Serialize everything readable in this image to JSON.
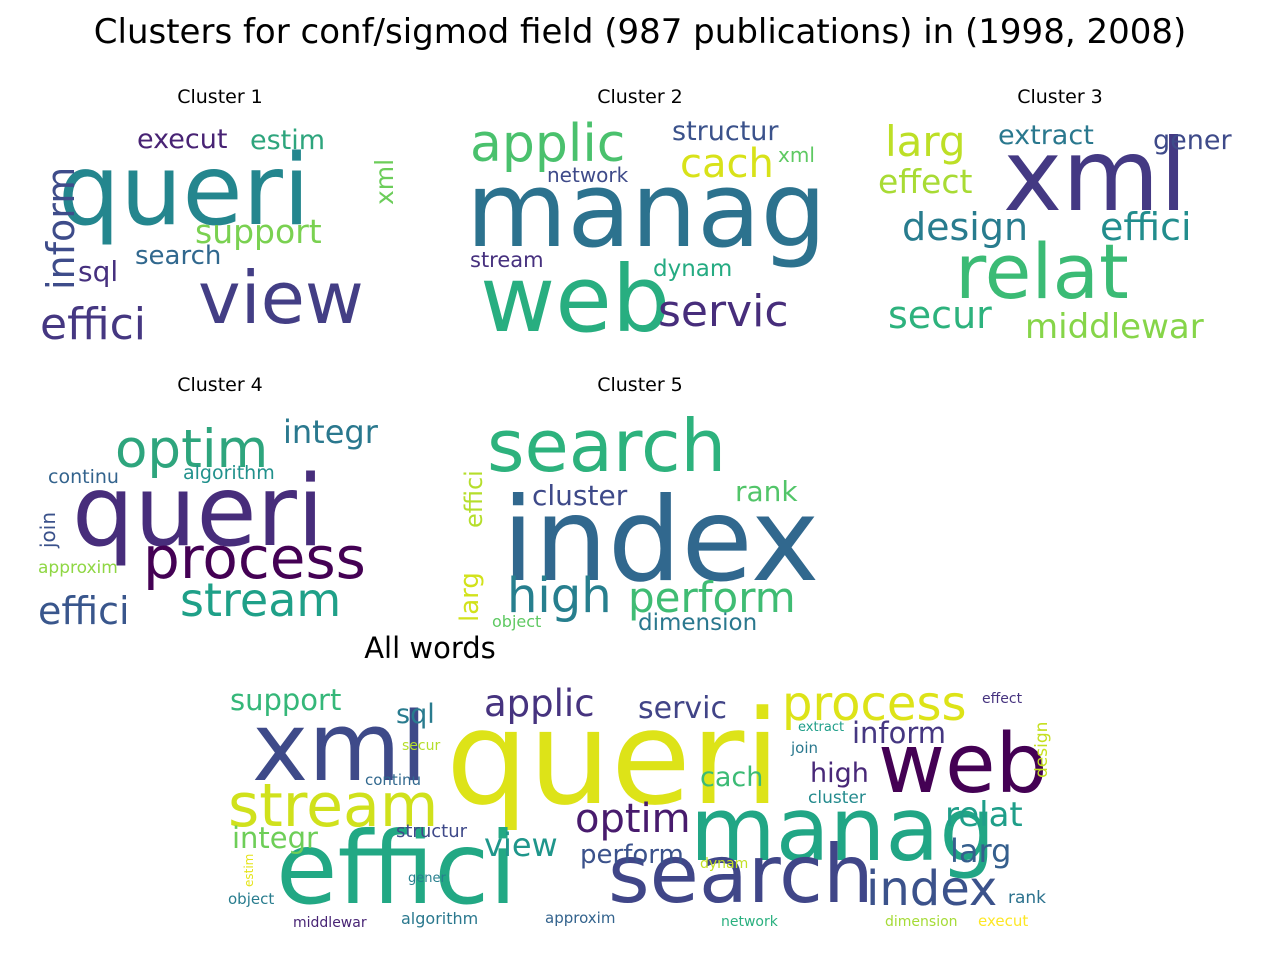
{
  "title": "Clusters for conf/sigmod field (987 publications) in (1998, 2008)",
  "chart_data": [
    {
      "type": "wordcloud",
      "title": "Cluster 1",
      "words": [
        {
          "text": "queri",
          "color": "#24868e"
        },
        {
          "text": "view",
          "color": "#433e85"
        },
        {
          "text": "effici",
          "color": "#453781"
        },
        {
          "text": "inform",
          "color": "#3e4c8a"
        },
        {
          "text": "execut",
          "color": "#482374"
        },
        {
          "text": "estim",
          "color": "#2ea57d"
        },
        {
          "text": "support",
          "color": "#7ad151"
        },
        {
          "text": "search",
          "color": "#31688e"
        },
        {
          "text": "sql",
          "color": "#46307e"
        },
        {
          "text": "xml",
          "color": "#6ccd5a"
        }
      ]
    },
    {
      "type": "wordcloud",
      "title": "Cluster 2",
      "words": [
        {
          "text": "manag",
          "color": "#2c728e"
        },
        {
          "text": "web",
          "color": "#28ae80"
        },
        {
          "text": "applic",
          "color": "#4ac16d"
        },
        {
          "text": "servic",
          "color": "#472d7b"
        },
        {
          "text": "structur",
          "color": "#3b528b"
        },
        {
          "text": "cach",
          "color": "#d8e219"
        },
        {
          "text": "network",
          "color": "#3e4a89"
        },
        {
          "text": "xml",
          "color": "#5ec962"
        },
        {
          "text": "stream",
          "color": "#46307e"
        },
        {
          "text": "dynam",
          "color": "#25ab82"
        }
      ]
    },
    {
      "type": "wordcloud",
      "title": "Cluster 3",
      "words": [
        {
          "text": "xml",
          "color": "#443983"
        },
        {
          "text": "relat",
          "color": "#3bbb75"
        },
        {
          "text": "larg",
          "color": "#bddf26"
        },
        {
          "text": "extract",
          "color": "#2a788e"
        },
        {
          "text": "gener",
          "color": "#3e4a89"
        },
        {
          "text": "effect",
          "color": "#a8db34"
        },
        {
          "text": "design",
          "color": "#287c8e"
        },
        {
          "text": "effici",
          "color": "#228d8d"
        },
        {
          "text": "secur",
          "color": "#2db27d"
        },
        {
          "text": "middlewar",
          "color": "#86d549"
        }
      ]
    },
    {
      "type": "wordcloud",
      "title": "Cluster 4",
      "words": [
        {
          "text": "queri",
          "color": "#472d7b"
        },
        {
          "text": "process",
          "color": "#440154"
        },
        {
          "text": "optim",
          "color": "#2ea57d"
        },
        {
          "text": "integr",
          "color": "#2a788e"
        },
        {
          "text": "stream",
          "color": "#1fa088"
        },
        {
          "text": "effici",
          "color": "#39568c"
        },
        {
          "text": "continu",
          "color": "#33638d"
        },
        {
          "text": "algorithm",
          "color": "#21918c"
        },
        {
          "text": "join",
          "color": "#3b528b"
        },
        {
          "text": "approxim",
          "color": "#8fd744"
        }
      ]
    },
    {
      "type": "wordcloud",
      "title": "Cluster 5",
      "words": [
        {
          "text": "index",
          "color": "#31688e"
        },
        {
          "text": "search",
          "color": "#2db27d"
        },
        {
          "text": "high",
          "color": "#277f8e"
        },
        {
          "text": "perform",
          "color": "#3fbc73"
        },
        {
          "text": "cluster",
          "color": "#3e4a89"
        },
        {
          "text": "rank",
          "color": "#52c569"
        },
        {
          "text": "effici",
          "color": "#b5de2b"
        },
        {
          "text": "larg",
          "color": "#d2e21b"
        },
        {
          "text": "dimension",
          "color": "#2a788e"
        },
        {
          "text": "object",
          "color": "#5ec962"
        }
      ]
    },
    {
      "type": "wordcloud",
      "title": "All words",
      "words": [
        {
          "text": "queri",
          "color": "#dde318"
        },
        {
          "text": "effici",
          "color": "#22a884"
        },
        {
          "text": "manag",
          "color": "#21a685"
        },
        {
          "text": "search",
          "color": "#404688"
        },
        {
          "text": "web",
          "color": "#440154"
        },
        {
          "text": "xml",
          "color": "#3e4a89"
        },
        {
          "text": "stream",
          "color": "#d0e11c"
        },
        {
          "text": "process",
          "color": "#dde318"
        },
        {
          "text": "index",
          "color": "#3b528b"
        },
        {
          "text": "optim",
          "color": "#481b6d"
        },
        {
          "text": "applic",
          "color": "#46337f"
        },
        {
          "text": "servic",
          "color": "#414487"
        },
        {
          "text": "support",
          "color": "#35b779"
        },
        {
          "text": "sql",
          "color": "#297b8e"
        },
        {
          "text": "inform",
          "color": "#453781"
        },
        {
          "text": "relat",
          "color": "#1f9e89"
        },
        {
          "text": "larg",
          "color": "#355f8d"
        },
        {
          "text": "view",
          "color": "#1f968b"
        },
        {
          "text": "integr",
          "color": "#6ece58"
        },
        {
          "text": "high",
          "color": "#482878"
        },
        {
          "text": "cach",
          "color": "#3cbb75"
        },
        {
          "text": "perform",
          "color": "#3b528b"
        },
        {
          "text": "structur",
          "color": "#3e4989"
        },
        {
          "text": "cluster",
          "color": "#238a8d"
        },
        {
          "text": "continu",
          "color": "#31688e"
        },
        {
          "text": "algorithm",
          "color": "#2a788e"
        },
        {
          "text": "approxim",
          "color": "#33638d"
        },
        {
          "text": "middlewar",
          "color": "#482475"
        },
        {
          "text": "object",
          "color": "#287c8e"
        },
        {
          "text": "network",
          "color": "#2ab07f"
        },
        {
          "text": "dimension",
          "color": "#a5db36"
        },
        {
          "text": "execut",
          "color": "#fde725"
        },
        {
          "text": "rank",
          "color": "#2c728e"
        },
        {
          "text": "dynam",
          "color": "#c2df23"
        },
        {
          "text": "join",
          "color": "#2a788e"
        },
        {
          "text": "extract",
          "color": "#1f9e89"
        },
        {
          "text": "effect",
          "color": "#46337f"
        },
        {
          "text": "design",
          "color": "#c5e021"
        },
        {
          "text": "secur",
          "color": "#b5de2b"
        },
        {
          "text": "gener",
          "color": "#277f8e"
        },
        {
          "text": "estim",
          "color": "#e5e419"
        }
      ]
    }
  ]
}
